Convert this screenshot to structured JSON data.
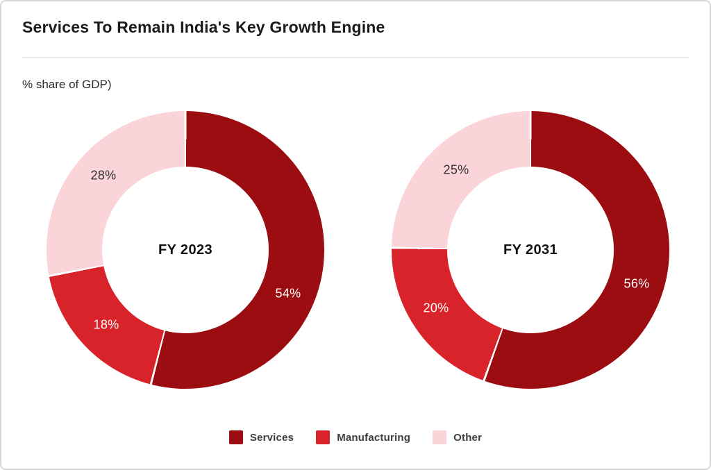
{
  "header": {
    "title": "Services To Remain India's Key Growth Engine",
    "subtitle": "% share of GDP)"
  },
  "colors": {
    "Services": "#9C0D12",
    "Manufacturing": "#D8232B",
    "Other": "#FAD4D9"
  },
  "legend": {
    "items": [
      {
        "label": "Services"
      },
      {
        "label": "Manufacturing"
      },
      {
        "label": "Other"
      }
    ]
  },
  "chart_data": [
    {
      "type": "pie",
      "subtype": "donut",
      "center_label": "FY 2023",
      "unit": "% share of GDP",
      "start_angle_deg": 0,
      "direction": "clockwise",
      "slices": [
        {
          "label": "Services",
          "value": 54,
          "display": "54%"
        },
        {
          "label": "Manufacturing",
          "value": 18,
          "display": "18%"
        },
        {
          "label": "Other",
          "value": 28,
          "display": "28%"
        }
      ]
    },
    {
      "type": "pie",
      "subtype": "donut",
      "center_label": "FY 2031",
      "unit": "% share of GDP",
      "start_angle_deg": 0,
      "direction": "clockwise",
      "slices": [
        {
          "label": "Services",
          "value": 56,
          "display": "56%"
        },
        {
          "label": "Manufacturing",
          "value": 20,
          "display": "20%"
        },
        {
          "label": "Other",
          "value": 25,
          "display": "25%"
        }
      ]
    }
  ]
}
